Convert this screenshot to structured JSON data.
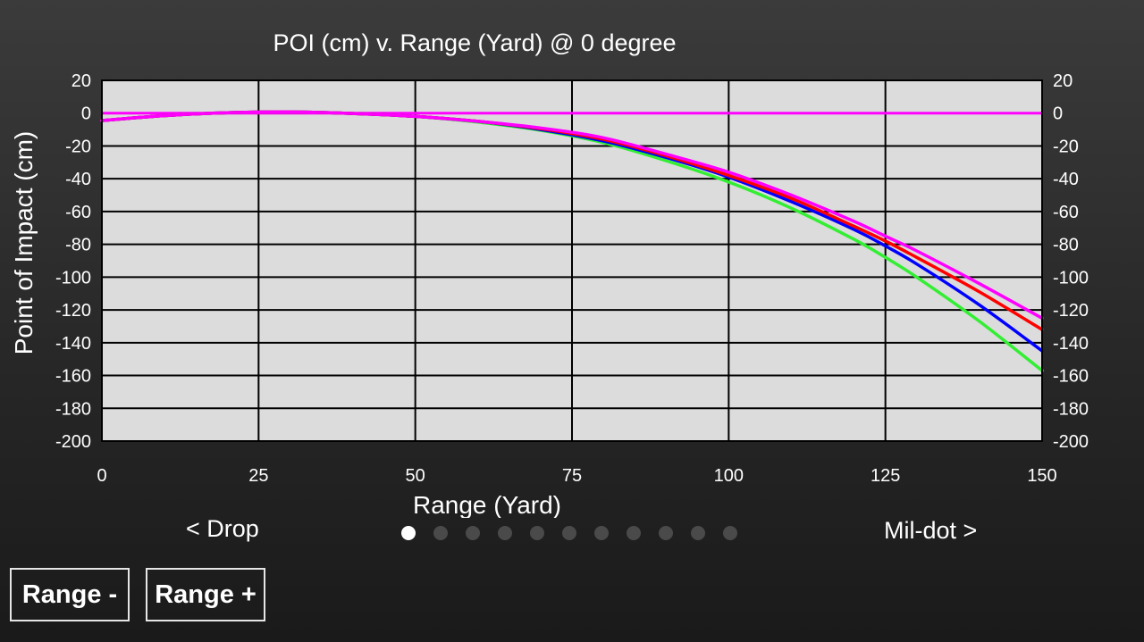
{
  "chart_data": {
    "type": "line",
    "title": "POI (cm) v. Range (Yard) @ 0 degree",
    "xlabel": "Range (Yard)",
    "ylabel": "Point of Impact (cm)",
    "xlim": [
      0,
      150
    ],
    "ylim": [
      -200,
      20
    ],
    "x_ticks": [
      0,
      25,
      50,
      75,
      100,
      125,
      150
    ],
    "y_ticks": [
      20,
      0,
      -20,
      -40,
      -60,
      -80,
      -100,
      -120,
      -140,
      -160,
      -180,
      -200
    ],
    "grid": true,
    "x": [
      0,
      10,
      20,
      30,
      40,
      50,
      60,
      70,
      80,
      90,
      100,
      110,
      120,
      125,
      130,
      140,
      150
    ],
    "series": [
      {
        "color": "#ff00ff",
        "values": [
          -4.5,
          -1.5,
          0.3,
          0.7,
          -0.2,
          -2,
          -5,
          -9,
          -15,
          -25,
          -36,
          -50,
          -66,
          -75,
          -84,
          -104,
          -125
        ]
      },
      {
        "color": "#ff0000",
        "values": [
          -4.5,
          -1.5,
          0.3,
          0.7,
          -0.2,
          -2,
          -5,
          -9.5,
          -16,
          -26,
          -38,
          -52,
          -69,
          -78,
          -88,
          -109,
          -132
        ]
      },
      {
        "color": "#0000ff",
        "values": [
          -4.5,
          -1.5,
          0.3,
          0.7,
          -0.2,
          -2,
          -5,
          -10,
          -17,
          -27,
          -39,
          -54,
          -71,
          -81,
          -92,
          -117,
          -145
        ]
      },
      {
        "color": "#33ee33",
        "values": [
          -4.5,
          -1.5,
          0.3,
          0.7,
          -0.2,
          -2,
          -5.5,
          -10.5,
          -18,
          -29,
          -42,
          -58,
          -77,
          -88,
          -100,
          -127,
          -157
        ]
      }
    ],
    "reference_line": {
      "color": "#ff00ff",
      "y": 0
    }
  },
  "nav": {
    "prev_label": "< Drop",
    "next_label": "Mil-dot >",
    "page_count": 11,
    "active_page": 0
  },
  "buttons": {
    "range_minus": "Range -",
    "range_plus": "Range +"
  }
}
